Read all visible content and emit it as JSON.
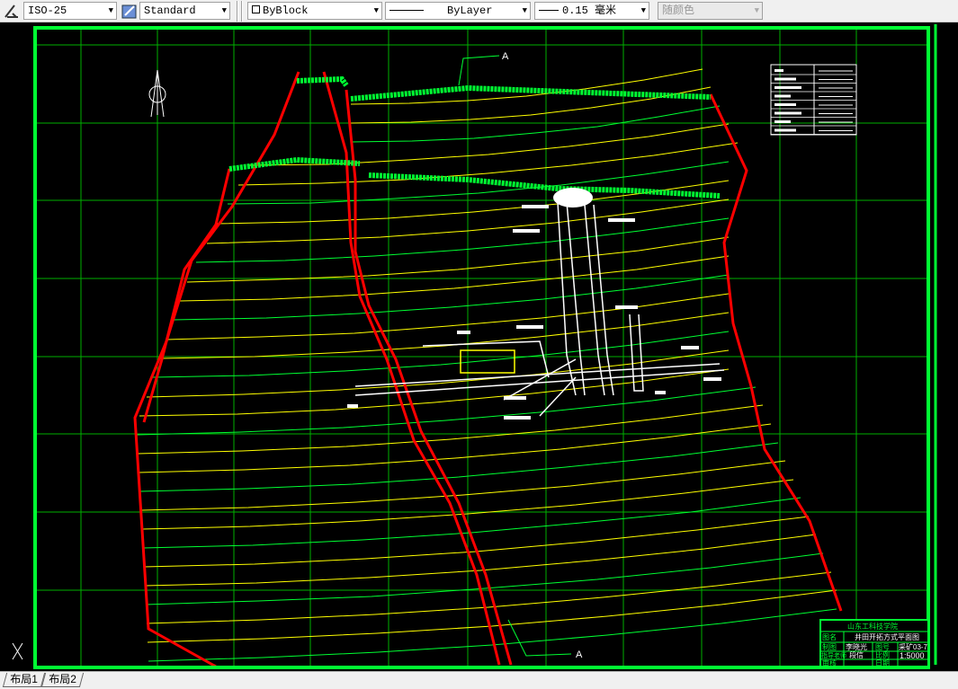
{
  "toolbar": {
    "dim_style": "ISO-25",
    "text_style": "Standard",
    "color": "ByBlock",
    "linetype": "ByLayer",
    "lineweight": "0.15 毫米",
    "plot_style": "随颜色"
  },
  "drawing": {
    "section_label_top": "A",
    "section_label_bottom": "A",
    "title_block": {
      "school": "山东工科技学院",
      "name_label": "图名",
      "name_value": "井田开拓方式平面图",
      "drawn_label": "制图",
      "drawn_value": "李晓光",
      "check_label": "审核",
      "number_label": "图号",
      "number_value": "采矿03-7",
      "guide_label": "指导老师",
      "guide_value": "段信",
      "scale_label": "比例",
      "scale_value": "1:5000",
      "date_label": "日期"
    },
    "colors": {
      "frame": "#00ff33",
      "fault": "#ff0000",
      "contour": "#ffff00",
      "grid": "#00c000",
      "roadway": "#ffffff"
    }
  },
  "layout_tabs": [
    {
      "label": "布局1"
    },
    {
      "label": "布局2"
    }
  ]
}
